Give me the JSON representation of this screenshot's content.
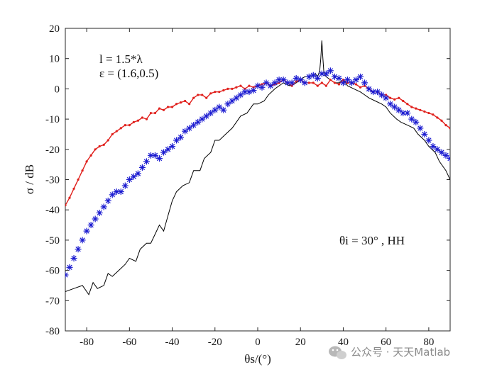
{
  "chart_data": {
    "type": "line",
    "xlabel": "θs/(°)",
    "ylabel": "σ / dB",
    "xlim": [
      -90,
      90
    ],
    "ylim": [
      -80,
      20
    ],
    "xticks": [
      -80,
      -60,
      -40,
      -20,
      0,
      20,
      40,
      60,
      80
    ],
    "yticks": [
      20,
      10,
      0,
      -10,
      -20,
      -30,
      -40,
      -50,
      -60,
      -70,
      -80
    ],
    "grid": false,
    "annotations": [
      "l = 1.5*λ",
      "ε = (1.6,0.5)",
      "θi = 30° , HH"
    ],
    "colors": {
      "black": "#000000",
      "red": "#e0201c",
      "blue": "#1a1ad0"
    },
    "series": [
      {
        "style": "black-line",
        "x": [
          -90,
          -86,
          -82,
          -79,
          -77,
          -75,
          -72,
          -70,
          -68,
          -65,
          -62,
          -60,
          -57,
          -55,
          -52,
          -50,
          -48,
          -46,
          -44,
          -42,
          -40,
          -38,
          -35,
          -32,
          -30,
          -27,
          -25,
          -22,
          -20,
          -18,
          -15,
          -12,
          -10,
          -8,
          -5,
          -2,
          0,
          3,
          5,
          8,
          10,
          12,
          15,
          18,
          20,
          22,
          25,
          27,
          28,
          29,
          29.5,
          30,
          30.5,
          31,
          32,
          34,
          36,
          38,
          40,
          42,
          45,
          48,
          50,
          52,
          55,
          58,
          60,
          62,
          65,
          67,
          70,
          73,
          75,
          78,
          80,
          83,
          85,
          88,
          90
        ],
        "y": [
          -67,
          -66,
          -65,
          -68,
          -64,
          -66,
          -65,
          -61,
          -62,
          -60,
          -58,
          -56,
          -57,
          -53,
          -51,
          -51,
          -48,
          -45,
          -47,
          -42,
          -37,
          -34,
          -32,
          -31,
          -27,
          -27,
          -23,
          -21,
          -17,
          -17,
          -15,
          -13,
          -11,
          -9,
          -8,
          -5,
          -5,
          -4,
          -2,
          0,
          1,
          2,
          1,
          2,
          3,
          4,
          4,
          5,
          4,
          6,
          10,
          16,
          10,
          5,
          4,
          3,
          2,
          2,
          3,
          1,
          0,
          -1,
          -2,
          -3,
          -4,
          -5,
          -6,
          -8,
          -10,
          -11,
          -12,
          -13,
          -15,
          -17,
          -19,
          -21,
          -24,
          -27,
          -30
        ]
      },
      {
        "style": "red-dotted-line",
        "x": [
          -90,
          -88,
          -86,
          -84,
          -82,
          -80,
          -78,
          -76,
          -74,
          -72,
          -70,
          -68,
          -66,
          -64,
          -62,
          -60,
          -58,
          -56,
          -54,
          -52,
          -50,
          -48,
          -46,
          -44,
          -42,
          -40,
          -38,
          -36,
          -34,
          -32,
          -30,
          -28,
          -26,
          -24,
          -22,
          -20,
          -18,
          -16,
          -14,
          -12,
          -10,
          -8,
          -6,
          -4,
          -2,
          0,
          2,
          4,
          6,
          8,
          10,
          12,
          14,
          16,
          18,
          20,
          22,
          24,
          26,
          28,
          30,
          32,
          34,
          36,
          38,
          40,
          42,
          44,
          46,
          48,
          50,
          52,
          54,
          56,
          58,
          60,
          62,
          64,
          66,
          68,
          70,
          72,
          74,
          76,
          78,
          80,
          82,
          84,
          86,
          88,
          90
        ],
        "y": [
          -38.5,
          -36,
          -33,
          -30,
          -27,
          -24,
          -22,
          -20,
          -19,
          -18.5,
          -17,
          -15,
          -14,
          -13,
          -12,
          -12,
          -11,
          -10.5,
          -9.5,
          -10,
          -8,
          -8,
          -6.5,
          -7,
          -6,
          -6,
          -5,
          -4.5,
          -4,
          -5,
          -3,
          -2,
          -2,
          -3,
          -1.5,
          -1,
          -1,
          -0.5,
          0,
          0,
          0.5,
          1,
          0,
          1,
          0.5,
          1,
          1.5,
          2,
          1,
          1.5,
          2,
          3,
          2,
          1,
          2.5,
          3,
          2,
          2,
          2,
          1,
          2,
          1,
          3,
          2,
          1.5,
          3,
          2,
          2,
          1.5,
          0.5,
          1,
          0,
          -1,
          -1,
          -2,
          -2,
          -3,
          -3.5,
          -3,
          -4,
          -5,
          -6,
          -6.5,
          -7,
          -7.5,
          -8,
          -8.5,
          -9.5,
          -10.5,
          -12,
          -13
        ]
      },
      {
        "style": "blue-asterisk-markers",
        "x": [
          -90,
          -88,
          -86,
          -84,
          -82,
          -80,
          -78,
          -76,
          -74,
          -72,
          -70,
          -68,
          -66,
          -64,
          -62,
          -60,
          -58,
          -56,
          -54,
          -52,
          -50,
          -48,
          -46,
          -44,
          -42,
          -40,
          -38,
          -36,
          -34,
          -32,
          -30,
          -28,
          -26,
          -24,
          -22,
          -20,
          -18,
          -16,
          -14,
          -12,
          -10,
          -8,
          -6,
          -4,
          -2,
          0,
          2,
          4,
          6,
          8,
          10,
          12,
          14,
          16,
          18,
          20,
          22,
          24,
          26,
          28,
          30,
          32,
          34,
          36,
          38,
          40,
          42,
          44,
          46,
          48,
          50,
          52,
          54,
          56,
          58,
          60,
          62,
          64,
          66,
          68,
          70,
          72,
          74,
          76,
          78,
          80,
          82,
          84,
          86,
          88,
          90
        ],
        "y": [
          -61.5,
          -59,
          -56,
          -53,
          -50,
          -47,
          -45,
          -43,
          -41,
          -39,
          -37,
          -35,
          -34,
          -34,
          -32,
          -30,
          -29,
          -28,
          -26,
          -24,
          -22,
          -22,
          -23,
          -21,
          -20,
          -19,
          -17,
          -16,
          -14,
          -13,
          -12,
          -11,
          -10,
          -9,
          -8,
          -7,
          -6,
          -7,
          -5,
          -4,
          -3,
          -2,
          -1,
          -1,
          -0.5,
          1,
          0.5,
          2,
          1,
          2,
          3,
          3,
          2,
          2,
          3.5,
          3,
          2,
          4,
          4.5,
          3.5,
          5,
          5,
          6,
          4,
          3.5,
          2,
          3,
          2,
          3,
          4,
          2,
          0,
          -1,
          -1,
          -2,
          -3,
          -5,
          -6,
          -7,
          -8,
          -8,
          -10,
          -11,
          -13,
          -15,
          -17,
          -19,
          -20,
          -21,
          -22,
          -23
        ]
      }
    ]
  },
  "watermark": {
    "icon": "wechat-icon",
    "text": "公众号 · 天天Matlab"
  }
}
